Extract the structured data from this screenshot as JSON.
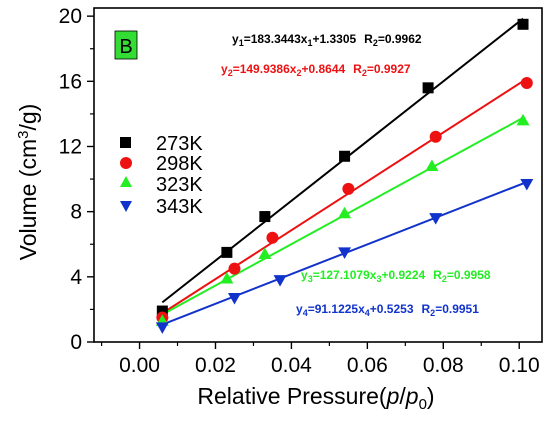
{
  "chart_data": {
    "type": "scatter",
    "panel_label": "B",
    "colors": {
      "panel_label_bg": "#33dd33",
      "axis": "#000000"
    },
    "xlabel": {
      "main": "Relative Pressure(",
      "p": "p",
      "slash": "/",
      "p0": "p",
      "p0_sub": "0",
      "close": ")"
    },
    "ylabel": {
      "main": "Volume (cm",
      "sup": "3",
      "tail": "/g)"
    },
    "xlim": [
      -0.012,
      0.106
    ],
    "ylim": [
      0,
      20.5
    ],
    "xticks": [
      0.0,
      0.02,
      0.04,
      0.06,
      0.08,
      0.1
    ],
    "xtick_labels": [
      "0.00",
      "0.02",
      "0.04",
      "0.06",
      "0.08",
      "0.10"
    ],
    "yticks": [
      0,
      4,
      8,
      12,
      16,
      20
    ],
    "ytick_labels": [
      "0",
      "4",
      "8",
      "12",
      "16",
      "20"
    ],
    "legend_position": "left",
    "series": [
      {
        "name": "273K",
        "marker": "square",
        "color": "#000000",
        "x": [
          0.006,
          0.023,
          0.033,
          0.054,
          0.076,
          0.101
        ],
        "y": [
          1.9,
          5.5,
          7.7,
          11.4,
          15.6,
          19.5
        ],
        "fit": {
          "slope": 183.3443,
          "intercept": 1.3305,
          "r2": "0.9962"
        },
        "equation": {
          "y": "y",
          "y_sub": "1",
          "body": "=183.3443x",
          "x_sub": "1",
          "tail": "+1.3305",
          "r": "R",
          "r_sub": "2",
          "r_val": "=0.9962"
        }
      },
      {
        "name": "298K",
        "marker": "circle",
        "color": "#ee1111",
        "x": [
          0.006,
          0.025,
          0.035,
          0.055,
          0.078,
          0.102
        ],
        "y": [
          1.5,
          4.5,
          6.4,
          9.4,
          12.6,
          15.9
        ],
        "fit": {
          "slope": 149.9386,
          "intercept": 0.8644,
          "r2": "0.9927"
        },
        "equation": {
          "y": "y",
          "y_sub": "2",
          "body": "=149.9386x",
          "x_sub": "2",
          "tail": "+0.8644",
          "r": "R",
          "r_sub": "2",
          "r_val": "=0.9927"
        }
      },
      {
        "name": "323K",
        "marker": "triangle-up",
        "color": "#22ee22",
        "x": [
          0.006,
          0.023,
          0.033,
          0.054,
          0.077,
          0.101
        ],
        "y": [
          1.3,
          3.9,
          5.4,
          7.9,
          10.8,
          13.6
        ],
        "fit": {
          "slope": 127.1079,
          "intercept": 0.9224,
          "r2": "0.9958"
        },
        "equation": {
          "y": "y",
          "y_sub": "3",
          "body": "=127.1079x",
          "x_sub": "3",
          "tail": "+0.9224",
          "r": "R",
          "r_sub": "2",
          "r_val": "=0.9958"
        }
      },
      {
        "name": "343K",
        "marker": "triangle-down",
        "color": "#1133cc",
        "x": [
          0.006,
          0.025,
          0.037,
          0.054,
          0.078,
          0.102
        ],
        "y": [
          0.9,
          2.7,
          3.8,
          5.5,
          7.6,
          9.7
        ],
        "fit": {
          "slope": 91.1225,
          "intercept": 0.5253,
          "r2": "0.9951"
        },
        "equation": {
          "y": "y",
          "y_sub": "4",
          "body": "=91.1225x",
          "x_sub": "4",
          "tail": "+0.5253",
          "r": "R",
          "r_sub": "2",
          "r_val": "=0.9951"
        }
      }
    ]
  }
}
